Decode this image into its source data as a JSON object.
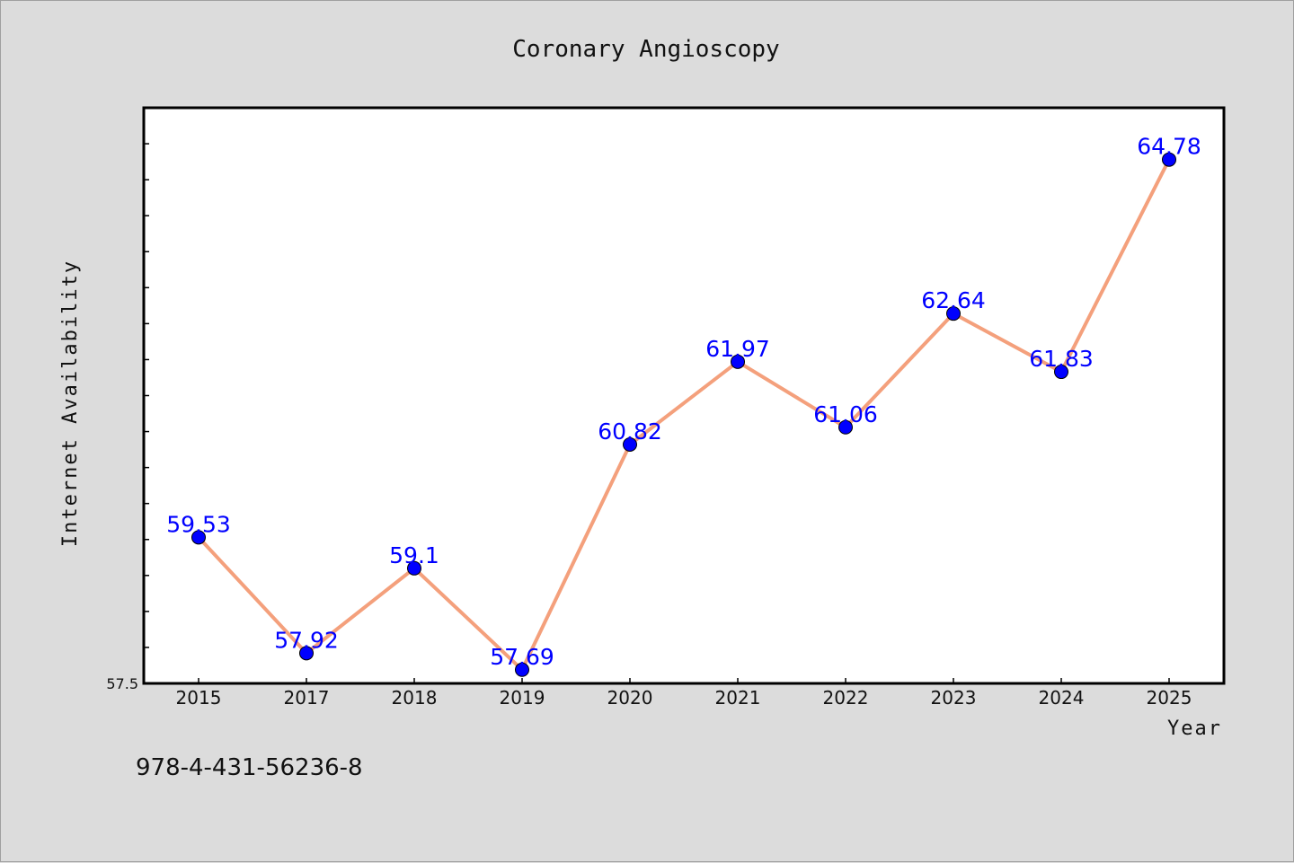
{
  "chart_data": {
    "type": "line",
    "title": "Coronary Angioscopy",
    "xlabel": "Year",
    "ylabel": "Internet Availability",
    "categories": [
      "2015",
      "2017",
      "2018",
      "2019",
      "2020",
      "2021",
      "2022",
      "2023",
      "2024",
      "2025"
    ],
    "series": [
      {
        "values": [
          59.53,
          57.92,
          59.1,
          57.69,
          60.82,
          61.97,
          61.06,
          62.64,
          61.83,
          64.78
        ],
        "labels": [
          "59.53",
          "57.92",
          "59.1",
          "57.69",
          "60.82",
          "61.97",
          "61.06",
          "62.64",
          "61.83",
          "64.78"
        ]
      }
    ],
    "ylim": [
      57.5,
      65.5
    ],
    "yticks_labeled": [
      "57.5"
    ],
    "grid": false,
    "legend": "none",
    "colors": {
      "line": "#f4a07c",
      "marker": "#0000ff",
      "marker_edge": "#000000",
      "data_label": "#0000ff",
      "background": "#dcdcdc",
      "plot_area": "#ffffff"
    }
  },
  "footer": {
    "isbn": "978-4-431-56236-8"
  }
}
